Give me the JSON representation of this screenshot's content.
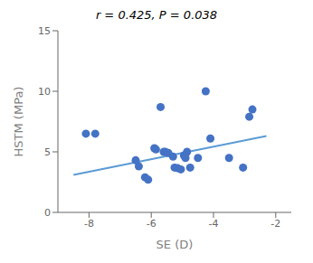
{
  "chart_data": {
    "type": "scatter",
    "title": "r = 0.425, P = 0.038",
    "xlabel": "SE (D)",
    "ylabel": "HSTM (MPa)",
    "xlim": [
      -9,
      -1.5
    ],
    "ylim": [
      0,
      15
    ],
    "xticks": [
      -8,
      -6,
      -4,
      -2
    ],
    "yticks": [
      0,
      5,
      10,
      15
    ],
    "series": [
      {
        "type": "scatter",
        "color": "#4472C4",
        "x": [
          -8.1,
          -7.8,
          -6.5,
          -6.4,
          -6.2,
          -6.1,
          -5.9,
          -5.85,
          -5.7,
          -5.6,
          -5.55,
          -5.45,
          -5.3,
          -5.25,
          -5.15,
          -5.05,
          -4.95,
          -4.9,
          -4.85,
          -4.75,
          -4.5,
          -4.25,
          -4.1,
          -3.5,
          -3.05,
          -2.85,
          -2.75
        ],
        "values": [
          6.5,
          6.5,
          4.3,
          3.8,
          2.9,
          2.7,
          5.3,
          5.2,
          8.7,
          5.0,
          5.0,
          4.9,
          4.6,
          3.7,
          3.65,
          3.55,
          4.7,
          4.5,
          5.0,
          3.7,
          4.5,
          10.0,
          6.1,
          4.5,
          3.7,
          7.9,
          8.5
        ]
      },
      {
        "type": "line",
        "color": "#5B9BD5",
        "x": [
          -8.5,
          -2.3
        ],
        "values": [
          3.1,
          6.3
        ]
      }
    ]
  }
}
